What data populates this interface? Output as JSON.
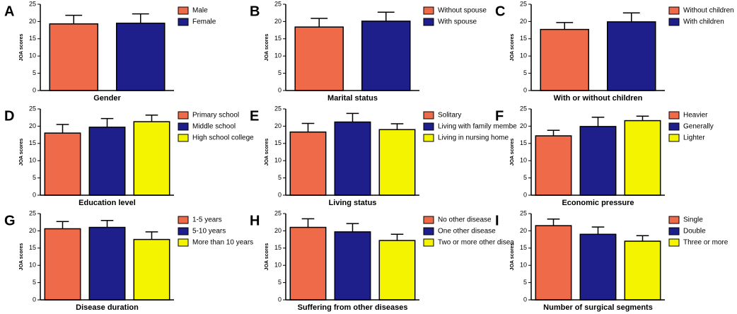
{
  "chart_data": [
    {
      "type": "bar",
      "panel": "A",
      "ylabel": "JOA scores",
      "xlabel": "Gender",
      "categories": [
        "Male",
        "Female"
      ],
      "values": [
        19.3,
        19.5
      ],
      "errors": [
        2.5,
        2.7
      ],
      "colors": [
        "#ef6a48",
        "#1f1f8c"
      ],
      "ylim": [
        0,
        25
      ],
      "yticks": [
        0,
        5,
        10,
        15,
        20,
        25
      ]
    },
    {
      "type": "bar",
      "panel": "B",
      "ylabel": "JOA scores",
      "xlabel": "Marital status",
      "categories": [
        "Without spouse",
        "With spouse"
      ],
      "values": [
        18.4,
        20.1
      ],
      "errors": [
        2.5,
        2.6
      ],
      "colors": [
        "#ef6a48",
        "#1f1f8c"
      ],
      "ylim": [
        0,
        25
      ],
      "yticks": [
        0,
        5,
        10,
        15,
        20,
        25
      ]
    },
    {
      "type": "bar",
      "panel": "C",
      "ylabel": "JOA scores",
      "xlabel": "With or without children",
      "categories": [
        "Without children",
        "With children"
      ],
      "values": [
        17.7,
        19.9
      ],
      "errors": [
        2.0,
        2.6
      ],
      "colors": [
        "#ef6a48",
        "#1f1f8c"
      ],
      "ylim": [
        0,
        25
      ],
      "yticks": [
        0,
        5,
        10,
        15,
        20,
        25
      ]
    },
    {
      "type": "bar",
      "panel": "D",
      "ylabel": "JOA scores",
      "xlabel": "Education level",
      "categories": [
        "Primary school",
        "Middle school",
        "High school college"
      ],
      "values": [
        18.0,
        19.7,
        21.3
      ],
      "errors": [
        2.5,
        2.5,
        1.9
      ],
      "colors": [
        "#ef6a48",
        "#1f1f8c",
        "#f4f400"
      ],
      "ylim": [
        0,
        25
      ],
      "yticks": [
        0,
        5,
        10,
        15,
        20,
        25
      ]
    },
    {
      "type": "bar",
      "panel": "E",
      "ylabel": "JOA scores",
      "xlabel": "Living status",
      "categories": [
        "Solitary",
        "Living with family membe",
        "Living in nursing home"
      ],
      "values": [
        18.3,
        21.2,
        19.0
      ],
      "errors": [
        2.5,
        2.5,
        1.7
      ],
      "colors": [
        "#ef6a48",
        "#1f1f8c",
        "#f4f400"
      ],
      "ylim": [
        0,
        25
      ],
      "yticks": [
        0,
        5,
        10,
        15,
        20,
        25
      ]
    },
    {
      "type": "bar",
      "panel": "F",
      "ylabel": "JOA scores",
      "xlabel": "Economic pressure",
      "categories": [
        "Heavier",
        "Generally",
        "Lighter"
      ],
      "values": [
        17.2,
        19.9,
        21.6
      ],
      "errors": [
        1.6,
        2.7,
        1.3
      ],
      "colors": [
        "#ef6a48",
        "#1f1f8c",
        "#f4f400"
      ],
      "ylim": [
        0,
        25
      ],
      "yticks": [
        0,
        5,
        10,
        15,
        20,
        25
      ]
    },
    {
      "type": "bar",
      "panel": "G",
      "ylabel": "JOA scores",
      "xlabel": "Disease duration",
      "categories": [
        "1-5 years",
        "5-10 years",
        "More than 10 years"
      ],
      "values": [
        20.6,
        21.0,
        17.5
      ],
      "errors": [
        2.1,
        2.0,
        2.2
      ],
      "colors": [
        "#ef6a48",
        "#1f1f8c",
        "#f4f400"
      ],
      "ylim": [
        0,
        25
      ],
      "yticks": [
        0,
        5,
        10,
        15,
        20,
        25
      ]
    },
    {
      "type": "bar",
      "panel": "H",
      "ylabel": "JOA scores",
      "xlabel": "Suffering from other diseases",
      "categories": [
        "No other disease",
        "One other disease",
        "Two or more other disea"
      ],
      "values": [
        21.0,
        19.7,
        17.2
      ],
      "errors": [
        2.5,
        2.4,
        1.8
      ],
      "colors": [
        "#ef6a48",
        "#1f1f8c",
        "#f4f400"
      ],
      "ylim": [
        0,
        25
      ],
      "yticks": [
        0,
        5,
        10,
        15,
        20,
        25
      ]
    },
    {
      "type": "bar",
      "panel": "I",
      "ylabel": "JOA scores",
      "xlabel": "Number of surgical segments",
      "categories": [
        "Single",
        "Double",
        "Three or more"
      ],
      "values": [
        21.5,
        19.0,
        17.0
      ],
      "errors": [
        1.9,
        2.1,
        1.6
      ],
      "colors": [
        "#ef6a48",
        "#1f1f8c",
        "#f4f400"
      ],
      "ylim": [
        0,
        25
      ],
      "yticks": [
        0,
        5,
        10,
        15,
        20,
        25
      ]
    }
  ]
}
